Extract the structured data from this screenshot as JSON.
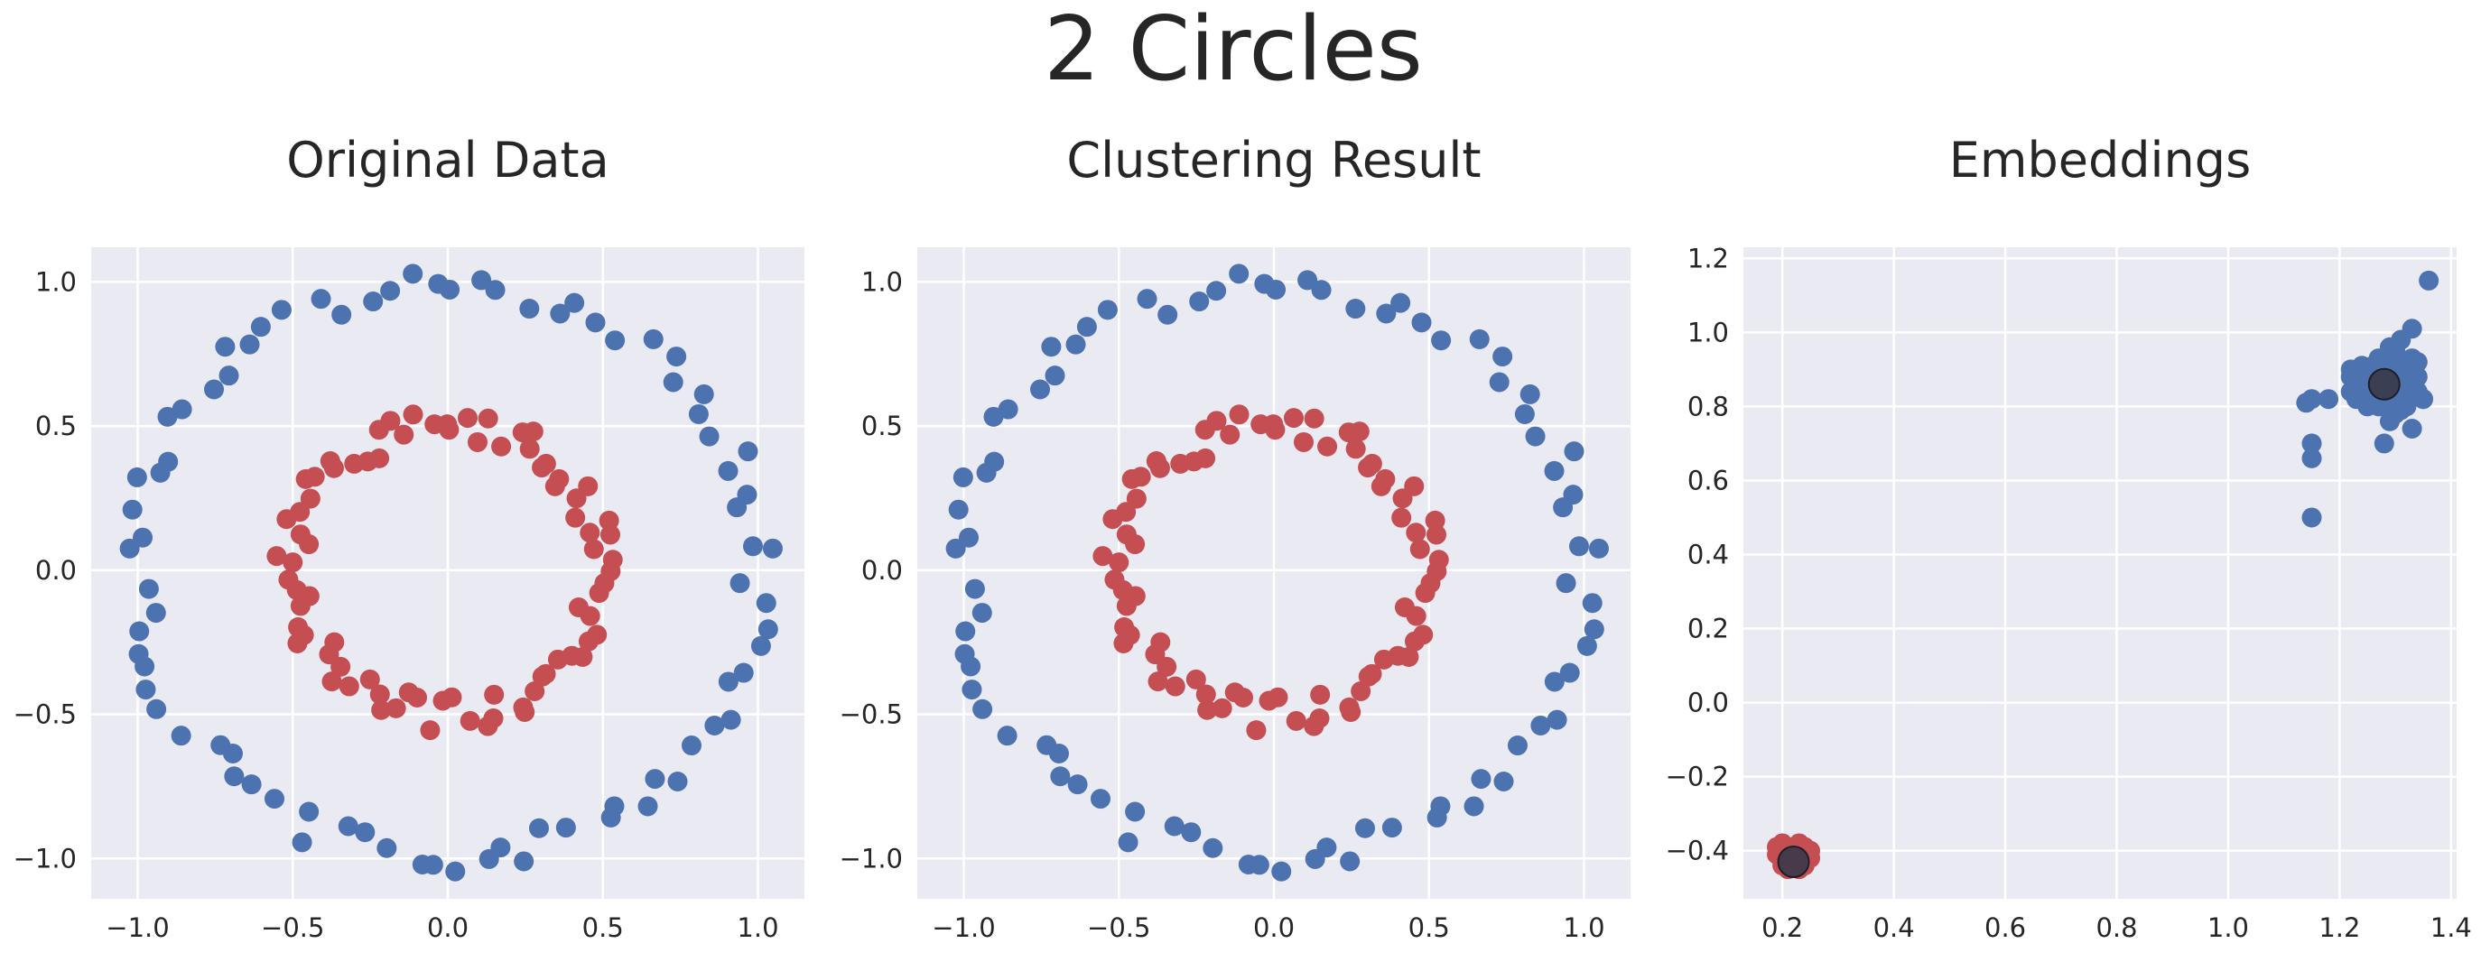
{
  "suptitle": "2 Circles",
  "colors": {
    "blue": "#4c72b0",
    "red": "#c44e52",
    "center": "#3a3a4a",
    "background": "#eaeaf2"
  },
  "chart_data": [
    {
      "type": "scatter",
      "title": "Original Data",
      "xlabel": "",
      "ylabel": "",
      "xlim": [
        -1.15,
        1.15
      ],
      "ylim": [
        -1.14,
        1.12
      ],
      "xticks": [
        -1.0,
        -0.5,
        0.0,
        0.5,
        1.0
      ],
      "xtick_labels": [
        "−1.0",
        "−0.5",
        "0.0",
        "0.5",
        "1.0"
      ],
      "yticks": [
        -1.0,
        -0.5,
        0.0,
        0.5,
        1.0
      ],
      "ytick_labels": [
        "−1.0",
        "−0.5",
        "0.0",
        "0.5",
        "1.0"
      ],
      "grid": true,
      "series": [
        {
          "color": "#4c72b0",
          "ref": "outer"
        },
        {
          "color": "#c44e52",
          "ref": "inner"
        }
      ]
    },
    {
      "type": "scatter",
      "title": "Clustering Result",
      "xlabel": "",
      "ylabel": "",
      "xlim": [
        -1.15,
        1.15
      ],
      "ylim": [
        -1.14,
        1.12
      ],
      "xticks": [
        -1.0,
        -0.5,
        0.0,
        0.5,
        1.0
      ],
      "xtick_labels": [
        "−1.0",
        "−0.5",
        "0.0",
        "0.5",
        "1.0"
      ],
      "yticks": [
        -1.0,
        -0.5,
        0.0,
        0.5,
        1.0
      ],
      "ytick_labels": [
        "−1.0",
        "−0.5",
        "0.0",
        "0.5",
        "1.0"
      ],
      "grid": true,
      "series": [
        {
          "color": "#4c72b0",
          "ref": "outer"
        },
        {
          "color": "#c44e52",
          "ref": "inner"
        }
      ]
    },
    {
      "type": "scatter",
      "title": "Embeddings",
      "xlabel": "",
      "ylabel": "",
      "xlim": [
        0.13,
        1.41
      ],
      "ylim": [
        -0.53,
        1.23
      ],
      "xticks": [
        0.2,
        0.4,
        0.6,
        0.8,
        1.0,
        1.2,
        1.4
      ],
      "xtick_labels": [
        "0.2",
        "0.4",
        "0.6",
        "0.8",
        "1.0",
        "1.2",
        "1.4"
      ],
      "yticks": [
        -0.4,
        -0.2,
        0.0,
        0.2,
        0.4,
        0.6,
        0.8,
        1.0,
        1.2
      ],
      "ytick_labels": [
        "−0.4",
        "−0.2",
        "0.0",
        "0.2",
        "0.4",
        "0.6",
        "0.8",
        "1.0",
        "1.2"
      ],
      "grid": true,
      "series": [
        {
          "color": "#4c72b0",
          "points": [
            [
              1.15,
              0.82
            ],
            [
              1.14,
              0.81
            ],
            [
              1.15,
              0.7
            ],
            [
              1.15,
              0.66
            ],
            [
              1.15,
              0.5
            ],
            [
              1.18,
              0.82
            ],
            [
              1.22,
              0.84
            ],
            [
              1.23,
              0.82
            ],
            [
              1.22,
              0.88
            ],
            [
              1.22,
              0.9
            ],
            [
              1.24,
              0.86
            ],
            [
              1.25,
              0.8
            ],
            [
              1.25,
              0.85
            ],
            [
              1.26,
              0.89
            ],
            [
              1.26,
              0.91
            ],
            [
              1.27,
              0.87
            ],
            [
              1.27,
              0.83
            ],
            [
              1.27,
              0.8
            ],
            [
              1.28,
              0.86
            ],
            [
              1.28,
              0.93
            ],
            [
              1.28,
              0.89
            ],
            [
              1.29,
              0.84
            ],
            [
              1.29,
              0.81
            ],
            [
              1.29,
              0.76
            ],
            [
              1.28,
              0.7
            ],
            [
              1.3,
              0.87
            ],
            [
              1.3,
              0.91
            ],
            [
              1.3,
              0.95
            ],
            [
              1.31,
              0.98
            ],
            [
              1.31,
              0.88
            ],
            [
              1.31,
              0.83
            ],
            [
              1.32,
              0.86
            ],
            [
              1.32,
              0.9
            ],
            [
              1.32,
              0.8
            ],
            [
              1.33,
              0.93
            ],
            [
              1.33,
              1.01
            ],
            [
              1.33,
              0.87
            ],
            [
              1.33,
              0.74
            ],
            [
              1.34,
              0.84
            ],
            [
              1.34,
              0.92
            ],
            [
              1.35,
              0.82
            ],
            [
              1.36,
              1.14
            ],
            [
              1.23,
              0.88
            ],
            [
              1.24,
              0.91
            ],
            [
              1.25,
              0.83
            ],
            [
              1.26,
              0.81
            ],
            [
              1.27,
              0.93
            ],
            [
              1.29,
              0.96
            ],
            [
              1.3,
              0.78
            ],
            [
              1.31,
              0.79
            ],
            [
              1.34,
              0.88
            ],
            [
              1.35,
              0.82
            ]
          ]
        },
        {
          "color": "#c44e52",
          "points": [
            [
              0.19,
              -0.39
            ],
            [
              0.19,
              -0.41
            ],
            [
              0.2,
              -0.38
            ],
            [
              0.2,
              -0.43
            ],
            [
              0.2,
              -0.44
            ],
            [
              0.21,
              -0.4
            ],
            [
              0.21,
              -0.45
            ],
            [
              0.22,
              -0.39
            ],
            [
              0.22,
              -0.42
            ],
            [
              0.22,
              -0.44
            ],
            [
              0.23,
              -0.4
            ],
            [
              0.23,
              -0.38
            ],
            [
              0.23,
              -0.43
            ],
            [
              0.24,
              -0.41
            ],
            [
              0.24,
              -0.44
            ],
            [
              0.24,
              -0.39
            ],
            [
              0.25,
              -0.42
            ],
            [
              0.25,
              -0.4
            ],
            [
              0.21,
              -0.42
            ],
            [
              0.23,
              -0.45
            ]
          ]
        },
        {
          "color": "#3a3a4a",
          "role": "centers",
          "points": [
            [
              0.22,
              -0.43
            ],
            [
              1.28,
              0.86
            ]
          ]
        }
      ]
    }
  ]
}
